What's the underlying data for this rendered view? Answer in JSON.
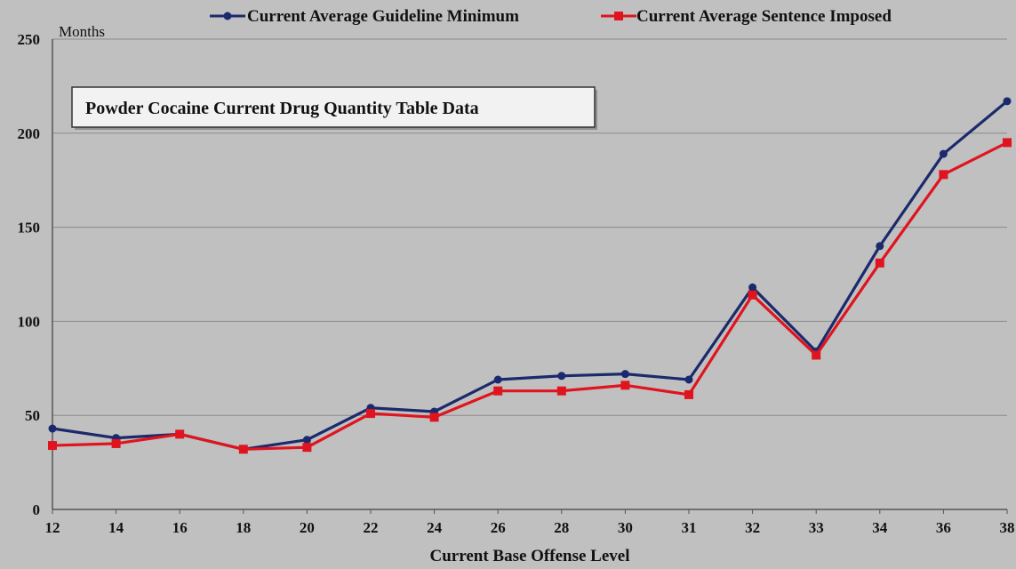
{
  "chart_data": {
    "type": "line",
    "title": "Powder Cocaine Current Drug Quantity Table Data",
    "xlabel": "Current Base Offense Level",
    "ylabel": "Months",
    "ylim": [
      0,
      250
    ],
    "yticks": [
      "0",
      "50",
      "100",
      "150",
      "200",
      "250"
    ],
    "categories": [
      "12",
      "14",
      "16",
      "18",
      "20",
      "22",
      "24",
      "26",
      "28",
      "30",
      "31",
      "32",
      "33",
      "34",
      "36",
      "38"
    ],
    "series": [
      {
        "name": "Current Average Guideline Minimum",
        "color": "#1a2a6c",
        "marker": "circle",
        "values": [
          43,
          38,
          40,
          32,
          37,
          54,
          52,
          69,
          71,
          72,
          69,
          118,
          84,
          140,
          189,
          217
        ]
      },
      {
        "name": "Current Average Sentence Imposed",
        "color": "#e0141e",
        "marker": "square",
        "values": [
          34,
          35,
          40,
          32,
          33,
          51,
          49,
          63,
          63,
          66,
          61,
          114,
          82,
          131,
          178,
          195
        ]
      }
    ],
    "grid": true,
    "legend_position": "top"
  },
  "colors": {
    "background": "#c0c0c0",
    "gridline": "#8a8a8a",
    "axis": "#555555"
  }
}
